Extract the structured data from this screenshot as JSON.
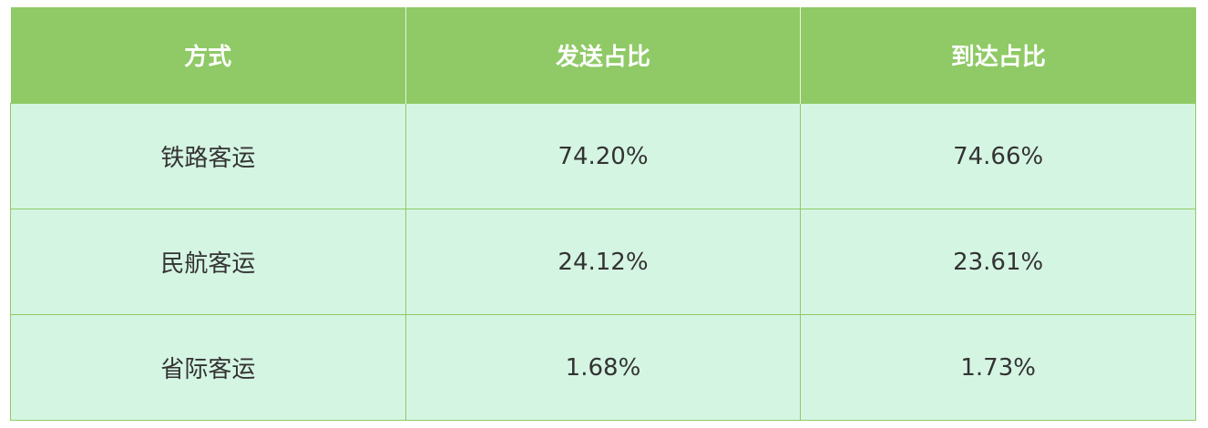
{
  "table": {
    "headers": [
      "方式",
      "发送占比",
      "到达占比"
    ],
    "rows": [
      [
        "铁路客运",
        "74.20%",
        "74.66%"
      ],
      [
        "民航客运",
        "24.12%",
        "23.61%"
      ],
      [
        "省际客运",
        "1.68%",
        "1.73%"
      ]
    ]
  },
  "colors": {
    "header_bg": "#8fca66",
    "body_bg": "#d5f5e3",
    "header_text": "#ffffff",
    "body_text": "#333333"
  }
}
